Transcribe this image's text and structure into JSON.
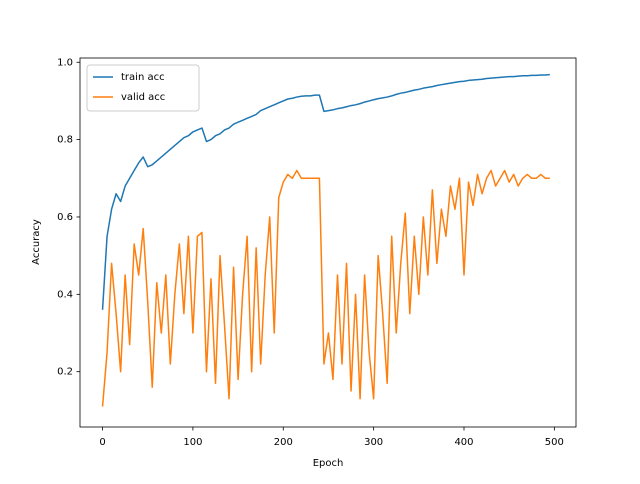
{
  "chart_data": {
    "type": "line",
    "xlabel": "Epoch",
    "ylabel": "Accuracy",
    "xlim": [
      -24.95,
      523.95
    ],
    "ylim": [
      0.057,
      1.011
    ],
    "xticks": [
      0,
      100,
      200,
      300,
      400,
      500
    ],
    "yticks": [
      0.2,
      0.4,
      0.6,
      0.8,
      {
        "value": 1,
        "label": "1.0"
      }
    ],
    "grid": false,
    "legend": "upper left",
    "x": [
      0,
      5,
      10,
      15,
      20,
      25,
      30,
      35,
      40,
      45,
      50,
      55,
      60,
      65,
      70,
      75,
      80,
      85,
      90,
      95,
      100,
      105,
      110,
      115,
      120,
      125,
      130,
      135,
      140,
      145,
      150,
      155,
      160,
      165,
      170,
      175,
      180,
      185,
      190,
      195,
      200,
      205,
      210,
      215,
      220,
      225,
      230,
      235,
      240,
      245,
      250,
      255,
      260,
      265,
      270,
      275,
      280,
      285,
      290,
      295,
      300,
      305,
      310,
      315,
      320,
      325,
      330,
      335,
      340,
      345,
      350,
      355,
      360,
      365,
      370,
      375,
      380,
      385,
      390,
      395,
      400,
      405,
      410,
      415,
      420,
      425,
      430,
      435,
      440,
      445,
      450,
      455,
      460,
      465,
      470,
      475,
      480,
      485,
      490,
      495
    ],
    "series": [
      {
        "name": "train acc",
        "color": "#1f77b4",
        "values": [
          0.36,
          0.55,
          0.62,
          0.66,
          0.64,
          0.68,
          0.7,
          0.72,
          0.74,
          0.755,
          0.73,
          0.735,
          0.745,
          0.755,
          0.765,
          0.775,
          0.785,
          0.795,
          0.805,
          0.81,
          0.82,
          0.825,
          0.83,
          0.795,
          0.8,
          0.81,
          0.815,
          0.825,
          0.83,
          0.84,
          0.845,
          0.85,
          0.855,
          0.86,
          0.865,
          0.875,
          0.88,
          0.885,
          0.89,
          0.895,
          0.9,
          0.905,
          0.907,
          0.91,
          0.912,
          0.913,
          0.913,
          0.915,
          0.915,
          0.873,
          0.875,
          0.877,
          0.88,
          0.882,
          0.885,
          0.888,
          0.89,
          0.893,
          0.897,
          0.9,
          0.903,
          0.906,
          0.908,
          0.91,
          0.913,
          0.917,
          0.92,
          0.922,
          0.925,
          0.928,
          0.93,
          0.933,
          0.935,
          0.937,
          0.94,
          0.942,
          0.944,
          0.946,
          0.948,
          0.95,
          0.951,
          0.953,
          0.954,
          0.955,
          0.956,
          0.958,
          0.959,
          0.96,
          0.961,
          0.962,
          0.963,
          0.963,
          0.964,
          0.965,
          0.965,
          0.966,
          0.966,
          0.967,
          0.967,
          0.968
        ]
      },
      {
        "name": "valid acc",
        "color": "#ff7f0e",
        "values": [
          0.11,
          0.25,
          0.48,
          0.35,
          0.2,
          0.45,
          0.27,
          0.53,
          0.45,
          0.57,
          0.38,
          0.16,
          0.43,
          0.3,
          0.45,
          0.22,
          0.4,
          0.53,
          0.35,
          0.55,
          0.3,
          0.55,
          0.56,
          0.2,
          0.44,
          0.17,
          0.5,
          0.32,
          0.13,
          0.47,
          0.18,
          0.4,
          0.55,
          0.2,
          0.52,
          0.22,
          0.45,
          0.6,
          0.3,
          0.65,
          0.69,
          0.71,
          0.7,
          0.72,
          0.7,
          0.7,
          0.7,
          0.7,
          0.7,
          0.22,
          0.3,
          0.18,
          0.45,
          0.22,
          0.48,
          0.15,
          0.4,
          0.13,
          0.45,
          0.25,
          0.13,
          0.5,
          0.35,
          0.17,
          0.55,
          0.3,
          0.48,
          0.61,
          0.35,
          0.55,
          0.4,
          0.6,
          0.45,
          0.67,
          0.48,
          0.62,
          0.55,
          0.68,
          0.62,
          0.7,
          0.45,
          0.69,
          0.63,
          0.71,
          0.66,
          0.7,
          0.72,
          0.68,
          0.7,
          0.72,
          0.69,
          0.71,
          0.68,
          0.7,
          0.71,
          0.7,
          0.7,
          0.71,
          0.7,
          0.7
        ]
      }
    ]
  }
}
